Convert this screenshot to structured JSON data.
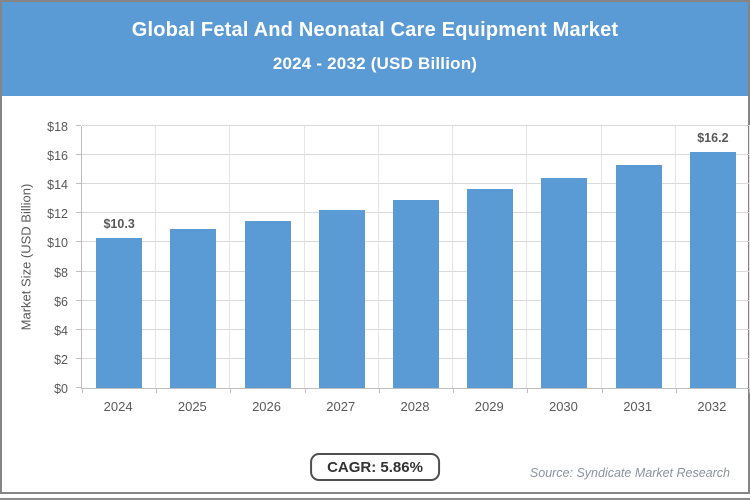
{
  "header": {
    "title_line1": "Global Fetal And Neonatal Care Equipment Market",
    "title_line2": "2024 - 2032 (USD Billion)"
  },
  "chart_data": {
    "type": "bar",
    "title": "Global Fetal And Neonatal Care Equipment Market 2024 - 2032 (USD Billion)",
    "categories": [
      "2024",
      "2025",
      "2026",
      "2027",
      "2028",
      "2029",
      "2030",
      "2031",
      "2032"
    ],
    "values": [
      10.3,
      10.9,
      11.5,
      12.2,
      12.9,
      13.7,
      14.4,
      15.3,
      16.2
    ],
    "value_labels": [
      "$10.3",
      "",
      "",
      "",
      "",
      "",
      "",
      "",
      "$16.2"
    ],
    "xlabel": "",
    "ylabel": "Market Size (USD Billion)",
    "ylim": [
      0,
      18
    ],
    "ytick_step": 2,
    "ytick_labels": [
      "$0",
      "$2",
      "$4",
      "$6",
      "$8",
      "$10",
      "$12",
      "$14",
      "$16",
      "$18"
    ],
    "grid": true,
    "legend": "none",
    "bar_color": "#5B9BD5"
  },
  "footer": {
    "cagr_label": "CAGR: 5.86%",
    "source": "Source: Syndicate Market Research"
  },
  "colors": {
    "header_bg": "#5B9BD5",
    "bar": "#5B9BD5",
    "grid_h": "#D9D9D9",
    "grid_v": "#E4E4E4",
    "axis": "#BFBFBF",
    "tick_text": "#595959",
    "source_text": "#8A939E",
    "card_border": "#858585"
  }
}
